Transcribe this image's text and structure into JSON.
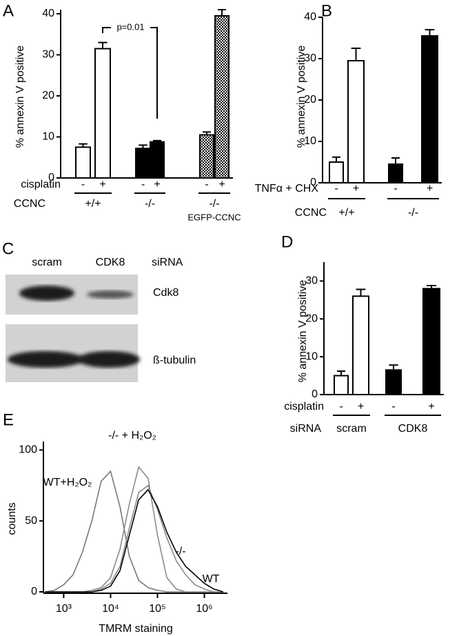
{
  "chart_data": [
    {
      "panel": "A",
      "type": "bar",
      "y_label": "% annexin V positive",
      "categories": [
        "-",
        "+",
        "-",
        "+",
        "-",
        "+"
      ],
      "values": [
        7.5,
        31.5,
        7.2,
        8.8,
        10.5,
        39.5
      ],
      "errors": [
        0.8,
        1.5,
        0.8,
        0.3,
        0.7,
        1.5
      ],
      "bar_styles": [
        "open",
        "open",
        "filled",
        "filled",
        "checkered",
        "checkered"
      ],
      "ylim": [
        0,
        41
      ],
      "yticks": [
        0,
        10,
        20,
        30,
        40
      ],
      "row_label": "cisplatin",
      "group_label": "CCNC",
      "groups": [
        "+/+",
        "-/-",
        "-/-"
      ],
      "group_note": "EGFP-CCNC",
      "annotation": "p=0.01"
    },
    {
      "panel": "B",
      "type": "bar",
      "y_label": "% annexin V positive",
      "categories": [
        "-",
        "+",
        "-",
        "+"
      ],
      "values": [
        5,
        29.5,
        4.5,
        35.5
      ],
      "errors": [
        1.2,
        3,
        1.5,
        1.5
      ],
      "bar_styles": [
        "open",
        "open",
        "filled",
        "filled"
      ],
      "ylim": [
        0,
        40
      ],
      "yticks": [
        0,
        10,
        20,
        30,
        40
      ],
      "row_label": "TNFα + CHX",
      "group_label": "CCNC",
      "groups": [
        "+/+",
        "-/-"
      ]
    },
    {
      "panel": "D",
      "type": "bar",
      "y_label": "% annexin V positive",
      "categories": [
        "-",
        "+",
        "-",
        "+"
      ],
      "values": [
        5,
        26,
        6.5,
        28
      ],
      "errors": [
        1.2,
        1.8,
        1.3,
        0.8
      ],
      "bar_styles": [
        "open",
        "open",
        "filled",
        "filled"
      ],
      "ylim": [
        0,
        35
      ],
      "yticks": [
        0,
        10,
        20,
        30
      ],
      "row_label": "cisplatin",
      "group_label": "siRNA",
      "groups": [
        "scram",
        "CDK8"
      ]
    },
    {
      "panel": "E",
      "type": "line",
      "x_label": "TMRM staining",
      "y_label": "counts",
      "log_x": true,
      "x": [
        398,
        631,
        1000,
        1585,
        2512,
        3981,
        6310,
        10000,
        15849,
        25119,
        39811,
        63096,
        100000,
        158489,
        251189,
        398107,
        630957,
        1000000,
        1584893,
        2511886
      ],
      "xlim": [
        370,
        3100000
      ],
      "xticks": [
        {
          "value": 1000,
          "label": "10³"
        },
        {
          "value": 10000,
          "label": "10⁴"
        },
        {
          "value": 100000,
          "label": "10⁵"
        },
        {
          "value": 1000000,
          "label": "10⁶"
        }
      ],
      "ylim": [
        0,
        106
      ],
      "yticks": [
        0,
        50,
        100
      ],
      "series": [
        {
          "name": "WT+H₂O₂",
          "color": "#777777",
          "values": [
            0,
            1,
            5,
            12,
            28,
            50,
            78,
            85,
            60,
            25,
            8,
            3,
            1,
            0,
            0,
            0,
            0,
            0,
            0,
            0
          ]
        },
        {
          "name": "-/- + H₂O₂",
          "color": "#8a8a8a",
          "values": [
            0,
            0,
            0,
            0,
            0,
            1,
            3,
            10,
            30,
            62,
            88,
            80,
            40,
            10,
            2,
            0,
            0,
            0,
            0,
            0
          ]
        },
        {
          "name": "-/-",
          "color": "#8a8a8a",
          "values": [
            0,
            0,
            0,
            0,
            0,
            0,
            2,
            6,
            18,
            45,
            70,
            75,
            58,
            38,
            22,
            12,
            5,
            2,
            0,
            0
          ]
        },
        {
          "name": "WT",
          "color": "#000000",
          "values": [
            0,
            0,
            0,
            0,
            0,
            0,
            1,
            4,
            15,
            40,
            65,
            72,
            60,
            42,
            28,
            18,
            12,
            6,
            2,
            0
          ]
        }
      ]
    }
  ],
  "blot": {
    "panel": "C",
    "lanes": [
      "scram",
      "CDK8"
    ],
    "lane_label": "siRNA",
    "bands": [
      "Cdk8",
      "ß-tubulin"
    ]
  }
}
